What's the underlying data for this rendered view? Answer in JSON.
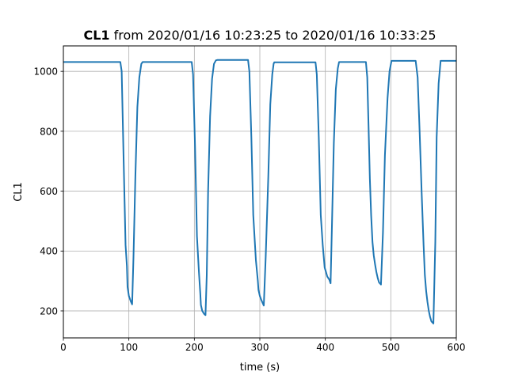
{
  "chart_data": {
    "type": "line",
    "title_bold": "CL1",
    "title_rest": " from 2020/01/16 10:23:25 to 2020/01/16 10:33:25",
    "xlabel": "time (s)",
    "ylabel": "CL1",
    "xlim": [
      0,
      600
    ],
    "ylim": [
      110,
      1085
    ],
    "xticks": [
      0,
      100,
      200,
      300,
      400,
      500,
      600
    ],
    "yticks": [
      200,
      400,
      600,
      800,
      1000
    ],
    "grid": true,
    "series": [
      {
        "color": "#1f77b4",
        "x": [
          0,
          87,
          89,
          92,
          95,
          97,
          98,
          100,
          102,
          103,
          105,
          107,
          110,
          113,
          116,
          119,
          121,
          196,
          198,
          201,
          204,
          207,
          209,
          210,
          212,
          215,
          217,
          219,
          221,
          224,
          227,
          230,
          233,
          235,
          282,
          284,
          287,
          290,
          294,
          297,
          298,
          300,
          302,
          304,
          306,
          309,
          313,
          316,
          319,
          321,
          322,
          385,
          387,
          390,
          393,
          396,
          398,
          399,
          401,
          403,
          406,
          408,
          410,
          413,
          416,
          419,
          421,
          462,
          464,
          466,
          468,
          470,
          472,
          474,
          476,
          478,
          480,
          482,
          485,
          488,
          491,
          495,
          498,
          501,
          538,
          541,
          544,
          547,
          550,
          552,
          554,
          556,
          558,
          560,
          562,
          565,
          568,
          570,
          573,
          576,
          600
        ],
        "y": [
          1031,
          1031,
          1000,
          700,
          420,
          350,
          280,
          250,
          238,
          232,
          222,
          380,
          650,
          880,
          980,
          1025,
          1031,
          1031,
          990,
          750,
          450,
          330,
          260,
          220,
          200,
          190,
          186,
          320,
          600,
          850,
          975,
          1025,
          1037,
          1038,
          1038,
          1000,
          780,
          520,
          370,
          300,
          270,
          250,
          238,
          228,
          218,
          380,
          650,
          890,
          990,
          1025,
          1030,
          1030,
          990,
          780,
          520,
          420,
          370,
          345,
          330,
          315,
          305,
          292,
          470,
          760,
          940,
          1010,
          1031,
          1031,
          980,
          820,
          640,
          520,
          430,
          385,
          355,
          330,
          310,
          295,
          288,
          460,
          720,
          910,
          1000,
          1035,
          1035,
          980,
          800,
          600,
          420,
          320,
          265,
          230,
          200,
          180,
          165,
          158,
          430,
          780,
          960,
          1035,
          1035
        ]
      }
    ]
  }
}
